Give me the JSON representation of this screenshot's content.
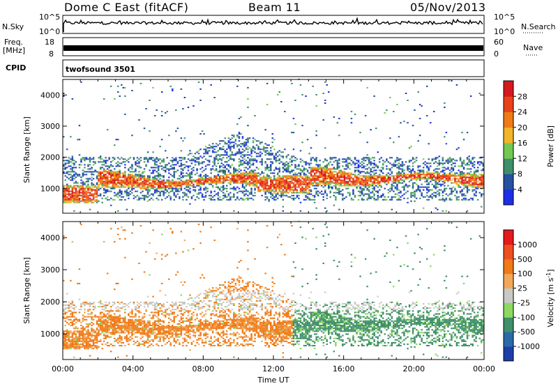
{
  "header": {
    "title": "Dome C East (fitACF)",
    "beam": "Beam 11",
    "date": "05/Nov/2013"
  },
  "strips": {
    "nsky_label": "N.Sky",
    "nsearch_label": "N.Search",
    "noise_ticks": [
      "10^5",
      "10^0"
    ],
    "freq_label_line1": "Freq.",
    "freq_label_line2": "[MHz]",
    "freq_ticks": [
      "18",
      "8"
    ],
    "nave_label": "Nave",
    "nave_ticks": [
      "60",
      "0"
    ],
    "cpid_label": "CPID",
    "cpid_value": "twofsound 3501"
  },
  "colors": {
    "power": [
      "#1c2ee6",
      "#2650a0",
      "#3f8f6a",
      "#72c850",
      "#f2b428",
      "#f07a16",
      "#e8421a",
      "#d6181e"
    ],
    "velocity": [
      "#e41a1c",
      "#ee4f20",
      "#f07a16",
      "#f2a75a",
      "#c8c8c4",
      "#8cd860",
      "#3f8f6a",
      "#2b6aa8",
      "#1d3ea8"
    ]
  },
  "chart_data": [
    {
      "type": "heatmap",
      "name": "power",
      "xlabel": "",
      "ylabel": "Slant Range [km]",
      "x_range_hours": [
        0,
        24
      ],
      "ylim": [
        200,
        4500
      ],
      "yticks": [
        "1000",
        "2000",
        "3000",
        "4000"
      ],
      "colorbar_label": "Power [dB]",
      "colorbar_ticks": [
        "4",
        "8",
        "12",
        "16",
        "20",
        "24",
        "28"
      ],
      "colorbar_range": [
        0,
        32
      ],
      "grid": false
    },
    {
      "type": "heatmap",
      "name": "velocity",
      "xlabel": "Time UT",
      "xticks": [
        "00:00",
        "04:00",
        "08:00",
        "12:00",
        "16:00",
        "20:00",
        "00:00"
      ],
      "ylabel": "Slant Range [km]",
      "x_range_hours": [
        0,
        24
      ],
      "ylim": [
        200,
        4500
      ],
      "yticks": [
        "1000",
        "2000",
        "3000",
        "4000"
      ],
      "colorbar_label": "Velocity [m s",
      "colorbar_label_sup": "-1",
      "colorbar_label_close": "]",
      "colorbar_ticks": [
        "1000",
        "500",
        "100",
        "25",
        "-25",
        "-100",
        "-500",
        "-1000"
      ],
      "grid": false
    }
  ]
}
